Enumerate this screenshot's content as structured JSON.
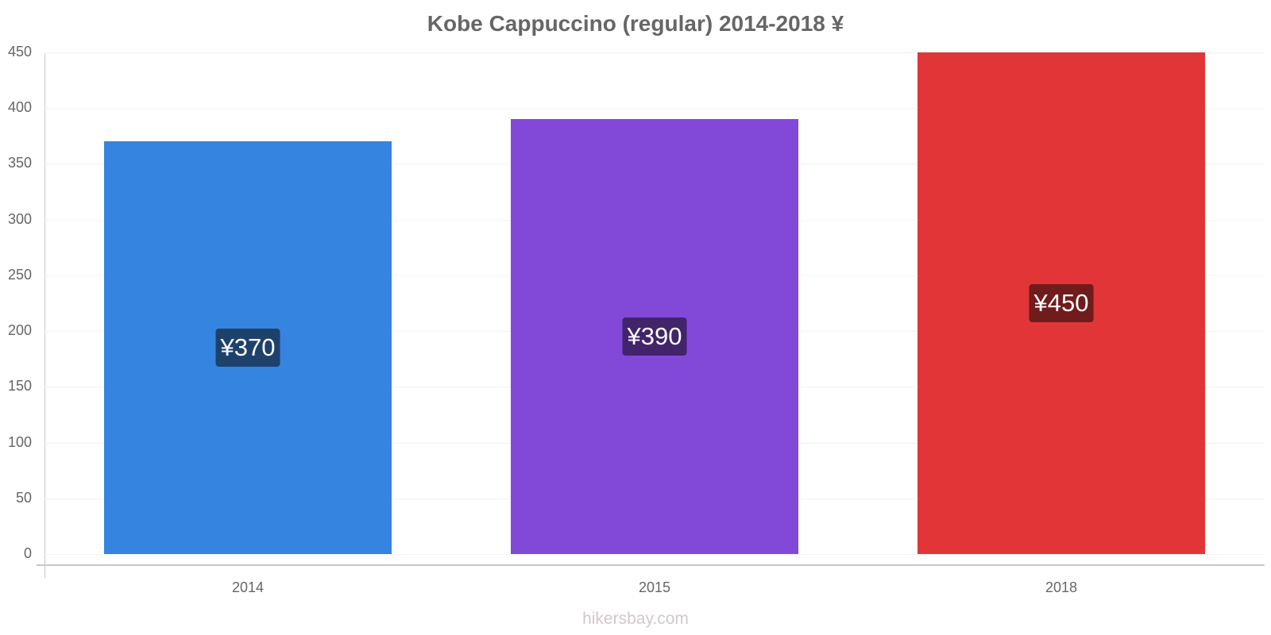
{
  "title": "Kobe Cappuccino (regular) 2014-2018 ¥",
  "watermark": "hikersbay.com",
  "chart_data": {
    "type": "bar",
    "title": "Kobe Cappuccino (regular) 2014-2018 ¥",
    "xlabel": "",
    "ylabel": "",
    "categories": [
      "2014",
      "2015",
      "2018"
    ],
    "values": [
      370,
      390,
      450
    ],
    "value_labels": [
      "¥370",
      "¥390",
      "¥450"
    ],
    "colors": [
      "#3584e0",
      "#8249d8",
      "#e13537"
    ],
    "label_bg_colors": [
      "#1e416c",
      "#41246a",
      "#701b1c"
    ],
    "ylim": [
      0,
      450
    ],
    "yticks": [
      0,
      50,
      100,
      150,
      200,
      250,
      300,
      350,
      400,
      450
    ],
    "grid": true,
    "legend": "none"
  }
}
